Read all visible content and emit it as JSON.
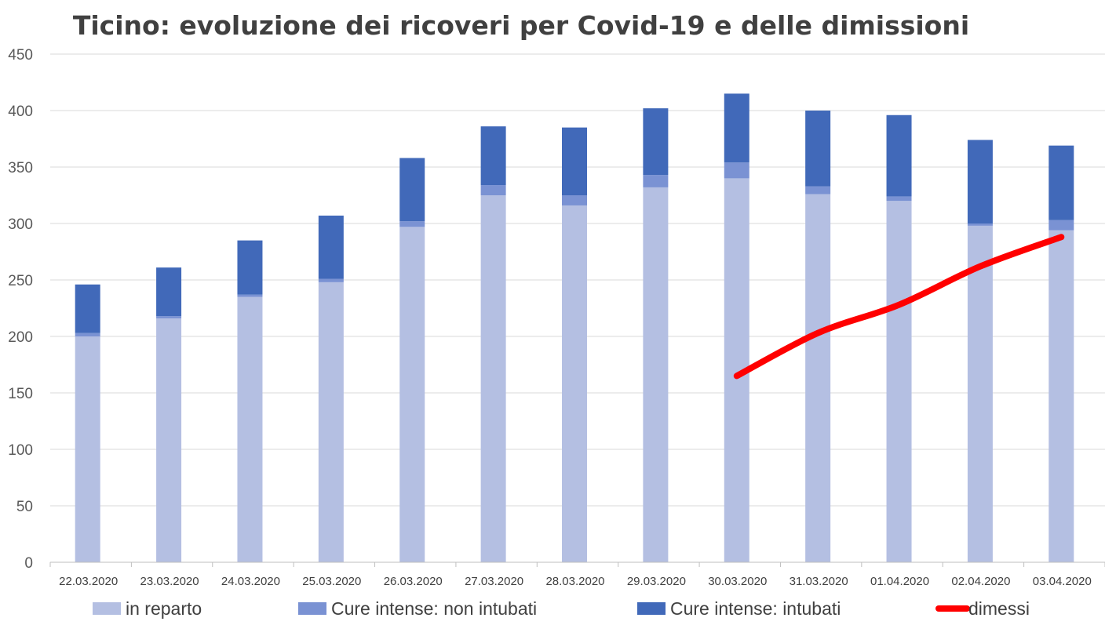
{
  "chart_data": {
    "type": "bar",
    "title": "Ticino: evoluzione dei ricoveri per Covid-19 e delle dimissioni",
    "categories": [
      "22.03.2020",
      "23.03.2020",
      "24.03.2020",
      "25.03.2020",
      "26.03.2020",
      "27.03.2020",
      "28.03.2020",
      "29.03.2020",
      "30.03.2020",
      "31.03.2020",
      "01.04.2020",
      "02.04.2020",
      "03.04.2020"
    ],
    "ylim": [
      0,
      450
    ],
    "yticks": [
      0,
      50,
      100,
      150,
      200,
      250,
      300,
      350,
      400,
      450
    ],
    "grid": true,
    "legend_position": "bottom",
    "stacked": true,
    "series": [
      {
        "name": "in reparto",
        "kind": "bar",
        "color": "#b4bfe2",
        "values": [
          200,
          216,
          235,
          248,
          297,
          325,
          316,
          332,
          340,
          326,
          320,
          298,
          294
        ]
      },
      {
        "name": "Cure intense: non intubati",
        "kind": "bar",
        "color": "#7a92d3",
        "values": [
          3,
          2,
          2,
          3,
          5,
          9,
          9,
          11,
          14,
          7,
          4,
          2,
          9
        ]
      },
      {
        "name": "Cure intense: intubati",
        "kind": "bar",
        "color": "#4169b9",
        "values": [
          43,
          43,
          48,
          56,
          56,
          52,
          60,
          59,
          61,
          67,
          72,
          74,
          66
        ]
      },
      {
        "name": "dimessi",
        "kind": "line",
        "color": "#ff0000",
        "values": [
          null,
          null,
          null,
          null,
          null,
          null,
          null,
          null,
          165,
          203,
          228,
          262,
          288
        ]
      }
    ]
  }
}
